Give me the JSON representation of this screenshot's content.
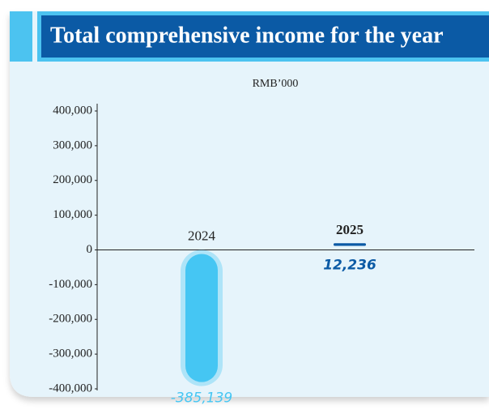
{
  "chart_data": {
    "type": "bar",
    "title": "Total comprehensive income for the year",
    "ylabel": "RMB’000",
    "categories": [
      "2024",
      "2025"
    ],
    "series": [
      {
        "colors": [
          "#45c6f3",
          "#0b5aa5"
        ],
        "values": [
          -385139,
          12236
        ],
        "value_labels": [
          "-385,139",
          "12,236"
        ]
      }
    ],
    "ylim": [
      -400000,
      400000
    ],
    "yticks": [
      {
        "value": -400000,
        "label": "-400,000"
      },
      {
        "value": -300000,
        "label": "-300,000"
      },
      {
        "value": -200000,
        "label": "-200,000"
      },
      {
        "value": -100000,
        "label": "-100,000"
      },
      0,
      {
        "value": 100000,
        "label": "100,000"
      },
      {
        "value": 200000,
        "label": "200,000"
      },
      {
        "value": 300000,
        "label": "300,000"
      },
      {
        "value": 400000,
        "label": "400,000"
      }
    ]
  }
}
